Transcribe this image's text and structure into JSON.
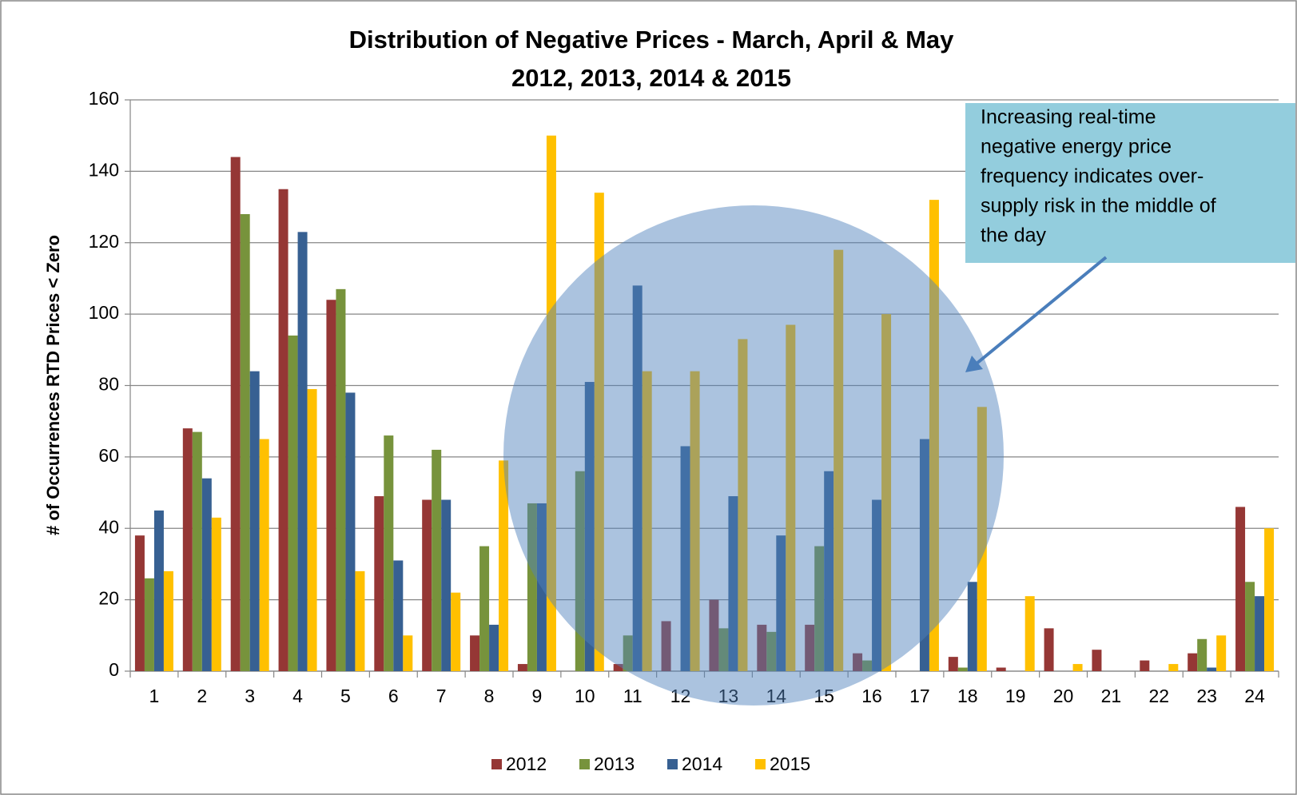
{
  "chart_data": {
    "type": "bar",
    "title": "Distribution  of Negative Prices - March, April & May",
    "subtitle": "2012, 2013, 2014 & 2015",
    "y_label": "# of Occurrences RTD Prices < Zero",
    "annotation": [
      "Increasing real-time",
      "negative energy price",
      "frequency indicates over-",
      "supply risk in the middle of",
      "the day"
    ],
    "categories": [
      "1",
      "2",
      "3",
      "4",
      "5",
      "6",
      "7",
      "8",
      "9",
      "10",
      "11",
      "12",
      "13",
      "14",
      "15",
      "16",
      "17",
      "18",
      "19",
      "20",
      "21",
      "22",
      "23",
      "24"
    ],
    "series": [
      {
        "name": "2012",
        "color": "#953735",
        "values": [
          38,
          68,
          144,
          135,
          104,
          49,
          48,
          10,
          2,
          0,
          2,
          14,
          20,
          13,
          13,
          5,
          0,
          4,
          1,
          12,
          6,
          3,
          5,
          46
        ]
      },
      {
        "name": "2013",
        "color": "#77933c",
        "values": [
          26,
          67,
          128,
          94,
          107,
          66,
          62,
          35,
          47,
          56,
          10,
          0,
          12,
          11,
          35,
          3,
          0,
          1,
          0,
          0,
          0,
          0,
          9,
          25
        ]
      },
      {
        "name": "2014",
        "color": "#376092",
        "values": [
          45,
          54,
          84,
          123,
          78,
          31,
          48,
          13,
          47,
          81,
          108,
          63,
          49,
          38,
          56,
          48,
          65,
          25,
          0,
          0,
          0,
          0,
          1,
          21
        ]
      },
      {
        "name": "2015",
        "color": "#ffc000",
        "values": [
          28,
          43,
          65,
          79,
          28,
          10,
          22,
          59,
          150,
          134,
          84,
          84,
          93,
          97,
          118,
          100,
          132,
          74,
          21,
          2,
          0,
          2,
          10,
          40
        ]
      }
    ],
    "ylim": [
      0,
      160
    ],
    "yticks": [
      0,
      20,
      40,
      60,
      80,
      100,
      120,
      140,
      160
    ],
    "grid": true,
    "legend": "bottom"
  }
}
